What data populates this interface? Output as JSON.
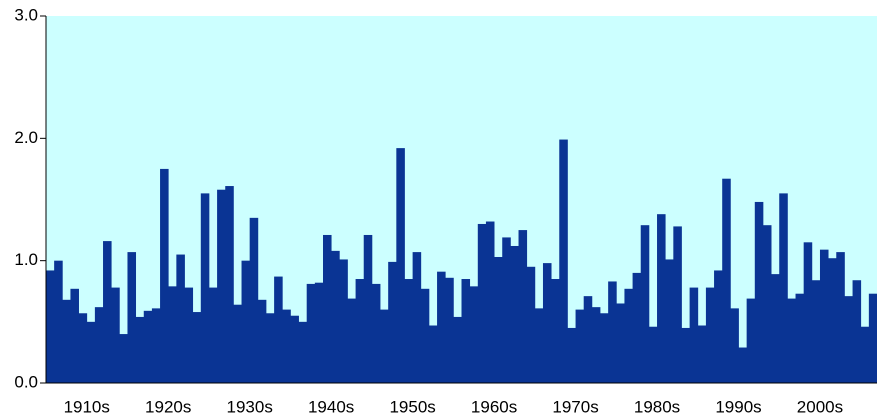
{
  "chart_data": {
    "type": "bar",
    "values": [
      0.92,
      1.0,
      0.68,
      0.77,
      0.57,
      0.5,
      0.62,
      1.16,
      0.78,
      0.4,
      1.07,
      0.54,
      0.59,
      0.61,
      1.75,
      0.79,
      1.05,
      0.78,
      0.58,
      1.55,
      0.78,
      1.58,
      1.61,
      0.64,
      1.0,
      1.35,
      0.68,
      0.57,
      0.87,
      0.6,
      0.55,
      0.5,
      0.81,
      0.82,
      1.21,
      1.08,
      1.01,
      0.69,
      0.85,
      1.21,
      0.81,
      0.6,
      0.99,
      1.92,
      0.85,
      1.07,
      0.77,
      0.47,
      0.91,
      0.86,
      0.54,
      0.85,
      0.79,
      1.3,
      1.32,
      1.03,
      1.19,
      1.12,
      1.25,
      0.95,
      0.61,
      0.98,
      0.85,
      1.99,
      0.45,
      0.6,
      0.71,
      0.62,
      0.57,
      0.83,
      0.65,
      0.77,
      0.9,
      1.29,
      0.46,
      1.38,
      1.01,
      1.28,
      0.45,
      0.78,
      0.47,
      0.78,
      0.92,
      1.67,
      0.61,
      0.29,
      0.69,
      1.48,
      1.29,
      0.89,
      1.55,
      0.69,
      0.73,
      1.15,
      0.84,
      1.09,
      1.02,
      1.07,
      0.71,
      0.84,
      0.46,
      0.73
    ],
    "color": "#0a3494",
    "background": "#ccffff",
    "xlim": [
      1910,
      2012
    ],
    "xticks": [
      {
        "value": 1915,
        "label": "1910s"
      },
      {
        "value": 1925,
        "label": "1920s"
      },
      {
        "value": 1935,
        "label": "1930s"
      },
      {
        "value": 1945,
        "label": "1940s"
      },
      {
        "value": 1955,
        "label": "1950s"
      },
      {
        "value": 1965,
        "label": "1960s"
      },
      {
        "value": 1975,
        "label": "1970s"
      },
      {
        "value": 1985,
        "label": "1980s"
      },
      {
        "value": 1995,
        "label": "1990s"
      },
      {
        "value": 2005,
        "label": "2000s"
      }
    ],
    "ylim": [
      0,
      3
    ],
    "yticks": [
      {
        "value": 0,
        "label": "0.0"
      },
      {
        "value": 1,
        "label": "1.0"
      },
      {
        "value": 2,
        "label": "2.0"
      },
      {
        "value": 3,
        "label": "3.0"
      }
    ],
    "grid": false
  }
}
